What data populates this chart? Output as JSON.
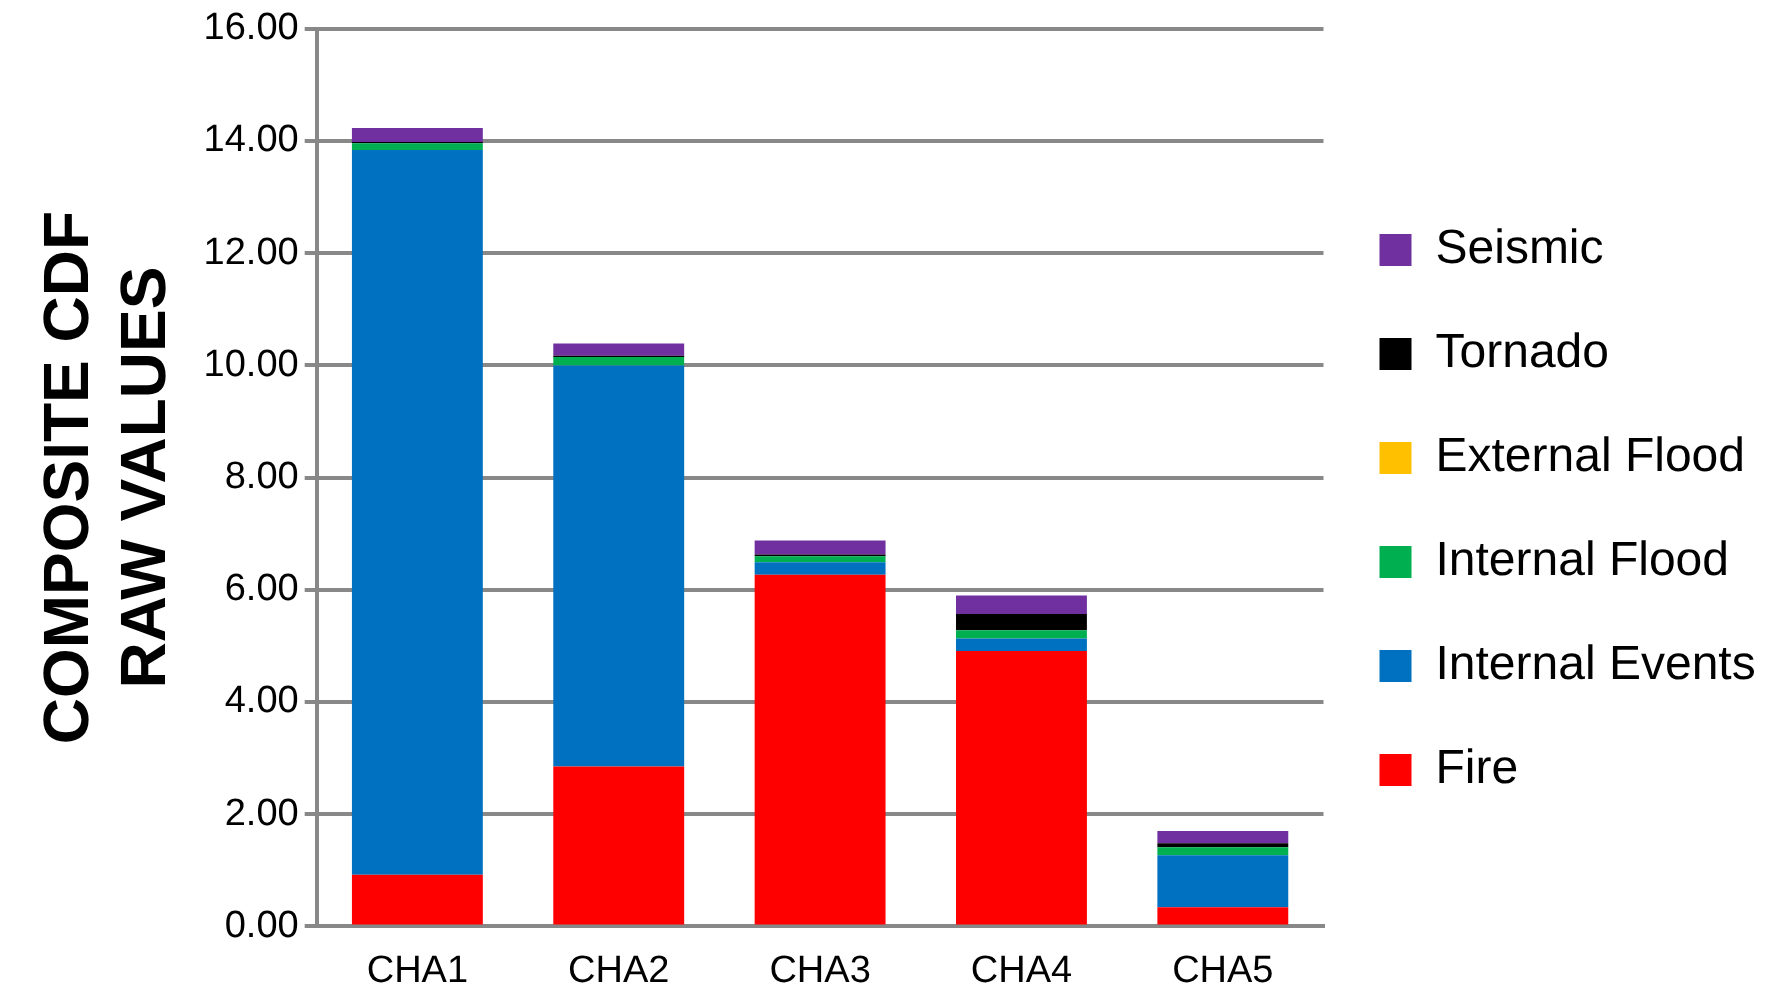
{
  "chart_data": {
    "type": "bar",
    "stacked": true,
    "ylabel": "COMPOSITE CDF\nRAW VALUES",
    "categories": [
      "CHA1",
      "CHA2",
      "CHA3",
      "CHA4",
      "CHA5"
    ],
    "series": [
      {
        "name": "Fire",
        "color": "#ff0000",
        "values": [
          0.92,
          2.85,
          6.27,
          4.91,
          0.34
        ]
      },
      {
        "name": "Internal Events",
        "color": "#0070c0",
        "values": [
          12.92,
          7.15,
          0.22,
          0.22,
          0.93
        ]
      },
      {
        "name": "Internal Flood",
        "color": "#00b050",
        "values": [
          0.12,
          0.15,
          0.11,
          0.15,
          0.14
        ]
      },
      {
        "name": "External Flood",
        "color": "#ffc000",
        "values": [
          0,
          0,
          0,
          0,
          0
        ]
      },
      {
        "name": "Tornado",
        "color": "#000000",
        "values": [
          0.02,
          0.02,
          0.03,
          0.29,
          0.07
        ]
      },
      {
        "name": "Seismic",
        "color": "#7030a0",
        "values": [
          0.25,
          0.22,
          0.25,
          0.33,
          0.22
        ]
      }
    ],
    "ylim": [
      0,
      16
    ],
    "yticks": [
      {
        "value": 0,
        "label": "0.00"
      },
      {
        "value": 2,
        "label": "2.00"
      },
      {
        "value": 4,
        "label": "4.00"
      },
      {
        "value": 6,
        "label": "6.00"
      },
      {
        "value": 8,
        "label": "8.00"
      },
      {
        "value": 10,
        "label": "10.00"
      },
      {
        "value": 12,
        "label": "12.00"
      },
      {
        "value": 14,
        "label": "14.00"
      },
      {
        "value": 16,
        "label": "16.00"
      }
    ],
    "grid": "y",
    "legend": "right"
  }
}
